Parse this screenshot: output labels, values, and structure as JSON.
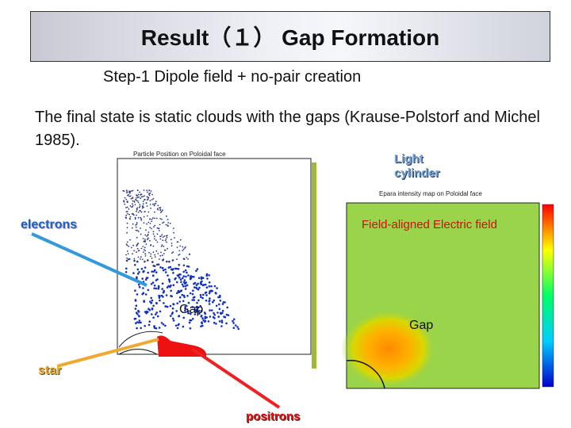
{
  "header": {
    "title": "Result（１） Gap Formation"
  },
  "subtitle": "Step-1 Dipole field + no-pair creation",
  "body": "The final state is static clouds with the gaps (Krause-Polstorf and Michel 1985).",
  "figures": {
    "left_caption": "Particle Position on Poloidal face",
    "right_caption": "Epara intensity map on Poloidal face"
  },
  "labels": {
    "light_cylinder": "Light cylinder",
    "electrons": "electrons",
    "field_aligned": "Field-aligned Electric field",
    "gap_left": "Gap",
    "gap_right": "Gap",
    "star": "star",
    "positrons": "positrons"
  }
}
